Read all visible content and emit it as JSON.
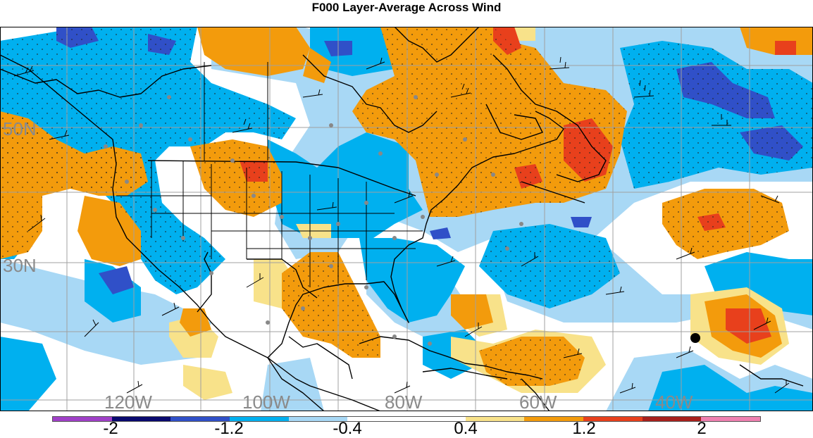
{
  "title": "F000 Layer-Average Across Wind",
  "map": {
    "lat_labels": [
      "50N",
      "30N"
    ],
    "lon_labels": [
      "120W",
      "100W",
      "80W",
      "60W",
      "40W"
    ]
  },
  "colorbar": {
    "colors": [
      "#a040c8",
      "#08086e",
      "#3050c8",
      "#00b0ef",
      "#a8d8f5",
      "#ffffff",
      "#ffffff",
      "#f8e28a",
      "#f39b0c",
      "#e8401c",
      "#a8201c",
      "#f080b0"
    ],
    "labels": [
      "-2",
      "-1.2",
      "-0.4",
      "0.4",
      "1.2",
      "2"
    ]
  },
  "palette": {
    "orange": "#f39b0c",
    "red": "#e8401c",
    "blue": "#00b0ef",
    "light_blue": "#a8d8f5",
    "dark_blue": "#3050c8",
    "yellow": "#f8e28a",
    "grid": "#a0a0a0"
  }
}
